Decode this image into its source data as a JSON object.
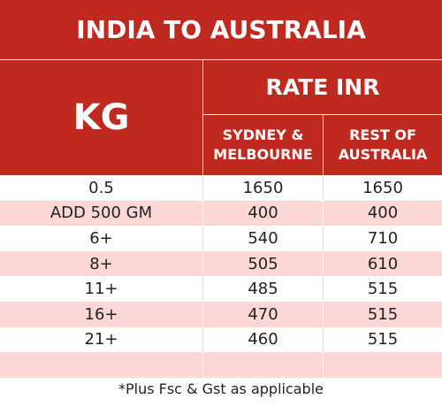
{
  "header": {
    "title": "INDIA TO AUSTRALIA",
    "kg": "KG",
    "rate": "RATE INR",
    "col1": "SYDNEY & MELBOURNE",
    "col2": "REST OF AUSTRALIA"
  },
  "table": {
    "rows": [
      [
        "0.5",
        "1650",
        "1650"
      ],
      [
        "ADD 500 GM",
        "400",
        "400"
      ],
      [
        "6+",
        "540",
        "710"
      ],
      [
        "8+",
        "505",
        "610"
      ],
      [
        "11+",
        "485",
        "515"
      ],
      [
        "16+",
        "470",
        "515"
      ],
      [
        "21+",
        "460",
        "515"
      ]
    ]
  },
  "footer": {
    "note": "*Plus Fsc & Gst as applicable"
  }
}
